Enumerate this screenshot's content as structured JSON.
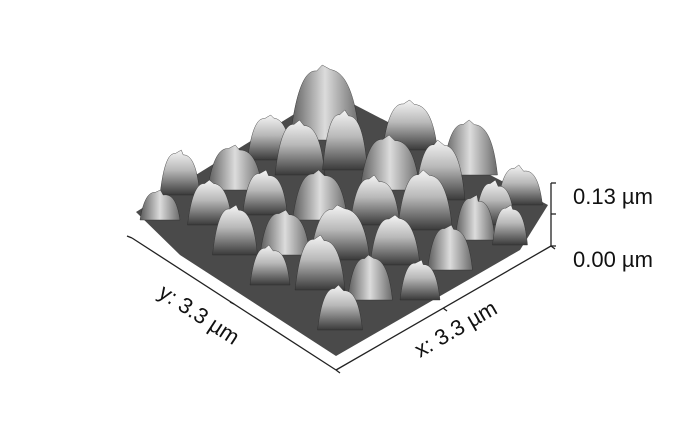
{
  "labels": {
    "x_axis": "x: 3.3 µm",
    "y_axis": "y: 3.3 µm",
    "z_max": "0.13 µm",
    "z_min": "0.00 µm"
  },
  "colors": {
    "axis": "#222222",
    "surface_dark": "#1e1e1e",
    "surface_light": "#f2f2f2"
  }
}
